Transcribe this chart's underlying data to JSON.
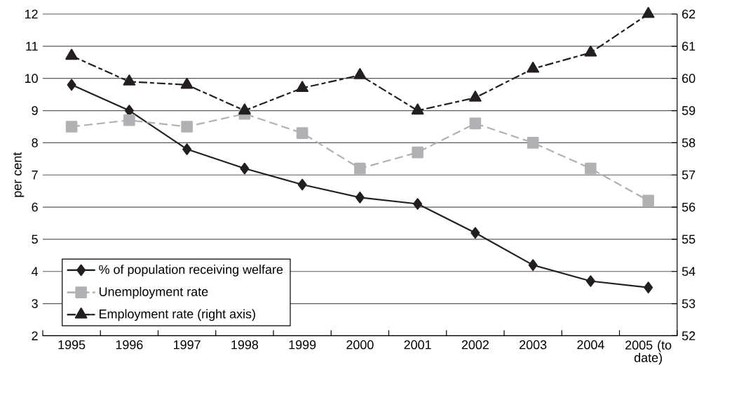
{
  "chart_data": {
    "type": "line",
    "ylabel": "per cent",
    "categories": [
      "1995",
      "1996",
      "1997",
      "1998",
      "1999",
      "2000",
      "2001",
      "2002",
      "2003",
      "2004",
      "2005 (to date)"
    ],
    "series": [
      {
        "name": "% of population receiving welfare",
        "color": "#231f20",
        "marker": "diamond",
        "line_style": "solid",
        "values": [
          9.8,
          9.0,
          7.8,
          7.2,
          6.7,
          6.3,
          6.1,
          5.2,
          4.2,
          3.7,
          3.5
        ]
      },
      {
        "name": "Unemployment rate",
        "color": "#b1b1b4",
        "marker": "square",
        "line_style": "dashed",
        "values": [
          8.5,
          8.7,
          8.5,
          8.9,
          8.3,
          7.2,
          7.7,
          8.6,
          8.0,
          7.2,
          6.2
        ]
      },
      {
        "name": "Employment rate (right axis)",
        "color": "#231f20",
        "marker": "triangle",
        "line_style": "dashed",
        "axis": "y2",
        "values": [
          60.7,
          59.9,
          59.8,
          59.0,
          59.7,
          60.1,
          59.0,
          59.4,
          60.3,
          60.8,
          62.0
        ]
      }
    ],
    "ylim": [
      2,
      12
    ],
    "yticks": [
      2,
      3,
      4,
      5,
      6,
      7,
      8,
      9,
      10,
      11,
      12
    ],
    "y2lim": [
      52,
      62
    ],
    "y2ticks": [
      52,
      53,
      54,
      55,
      56,
      57,
      58,
      59,
      60,
      61,
      62
    ],
    "grid": "y",
    "legend": "bottom left"
  }
}
